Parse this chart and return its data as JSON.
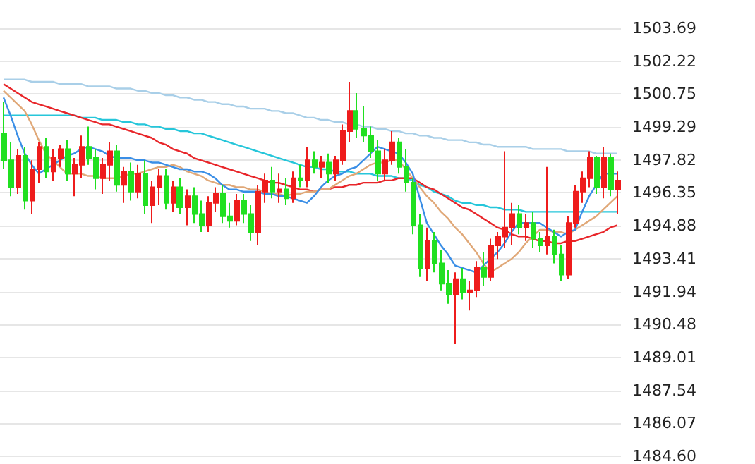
{
  "chart_data": {
    "type": "candlestick",
    "categories": [
      null,
      null,
      null,
      null,
      null,
      null,
      null,
      null,
      null,
      null,
      null,
      null,
      null,
      null,
      null,
      null,
      null,
      null,
      null,
      null,
      null,
      null,
      null,
      null,
      null,
      null,
      null,
      null,
      null,
      null,
      null,
      null,
      null,
      null,
      null,
      null,
      null,
      null,
      null,
      null,
      null,
      null,
      null,
      null,
      null,
      null,
      null,
      null,
      null,
      null,
      null,
      null,
      null,
      null,
      null,
      null,
      null,
      null,
      null,
      null,
      null,
      null,
      null,
      null,
      null,
      null,
      null,
      null,
      null,
      null,
      null,
      null,
      null,
      null,
      null,
      null,
      null,
      null,
      null,
      null,
      null,
      null,
      null,
      null,
      null,
      null,
      null,
      null
    ],
    "ohlc": [
      [
        1499.0,
        1500.4,
        1497.4,
        1497.8
      ],
      [
        1497.8,
        1498.6,
        1496.2,
        1496.6
      ],
      [
        1496.6,
        1498.3,
        1496.3,
        1498.0
      ],
      [
        1498.0,
        1498.4,
        1495.6,
        1496.0
      ],
      [
        1496.0,
        1497.8,
        1495.4,
        1497.4
      ],
      [
        1497.4,
        1498.6,
        1496.8,
        1498.4
      ],
      [
        1498.4,
        1498.8,
        1497.0,
        1497.3
      ],
      [
        1497.3,
        1498.3,
        1496.9,
        1497.9
      ],
      [
        1497.9,
        1498.5,
        1497.5,
        1498.3
      ],
      [
        1498.3,
        1498.7,
        1496.9,
        1497.2
      ],
      [
        1497.2,
        1497.9,
        1496.2,
        1497.6
      ],
      [
        1497.6,
        1498.9,
        1497.0,
        1498.4
      ],
      [
        1498.4,
        1499.3,
        1497.6,
        1497.9
      ],
      [
        1497.9,
        1498.3,
        1496.5,
        1497.0
      ],
      [
        1497.0,
        1497.9,
        1496.3,
        1497.6
      ],
      [
        1497.6,
        1498.6,
        1496.9,
        1498.2
      ],
      [
        1498.2,
        1498.5,
        1496.4,
        1496.7
      ],
      [
        1496.7,
        1497.5,
        1495.9,
        1497.3
      ],
      [
        1497.3,
        1497.7,
        1496.0,
        1496.4
      ],
      [
        1496.4,
        1497.6,
        1496.1,
        1497.2
      ],
      [
        1497.2,
        1497.8,
        1495.4,
        1495.8
      ],
      [
        1495.8,
        1496.9,
        1495.0,
        1496.6
      ],
      [
        1496.6,
        1497.4,
        1495.8,
        1497.1
      ],
      [
        1497.1,
        1497.4,
        1495.6,
        1495.9
      ],
      [
        1495.9,
        1496.9,
        1495.5,
        1496.6
      ],
      [
        1496.6,
        1497.0,
        1495.4,
        1495.7
      ],
      [
        1495.7,
        1496.5,
        1494.9,
        1496.2
      ],
      [
        1496.2,
        1496.6,
        1495.0,
        1495.4
      ],
      [
        1495.4,
        1496.0,
        1494.6,
        1494.9
      ],
      [
        1494.9,
        1496.2,
        1494.6,
        1495.9
      ],
      [
        1495.9,
        1496.6,
        1495.5,
        1496.3
      ],
      [
        1496.3,
        1496.7,
        1495.0,
        1495.3
      ],
      [
        1495.3,
        1495.9,
        1494.8,
        1495.1
      ],
      [
        1495.1,
        1496.3,
        1494.9,
        1496.0
      ],
      [
        1496.0,
        1496.3,
        1495.0,
        1495.4
      ],
      [
        1495.4,
        1495.8,
        1494.2,
        1494.6
      ],
      [
        1494.6,
        1496.7,
        1494.0,
        1496.4
      ],
      [
        1496.4,
        1497.2,
        1495.9,
        1496.9
      ],
      [
        1496.9,
        1497.5,
        1496.1,
        1496.4
      ],
      [
        1496.4,
        1497.2,
        1495.9,
        1496.5
      ],
      [
        1496.5,
        1497.0,
        1495.8,
        1496.1
      ],
      [
        1496.1,
        1497.3,
        1495.9,
        1497.0
      ],
      [
        1497.0,
        1497.6,
        1496.6,
        1496.9
      ],
      [
        1496.9,
        1498.4,
        1496.6,
        1497.8
      ],
      [
        1497.8,
        1498.2,
        1497.2,
        1497.5
      ],
      [
        1497.5,
        1498.0,
        1497.0,
        1497.7
      ],
      [
        1497.7,
        1498.1,
        1496.8,
        1497.2
      ],
      [
        1497.2,
        1498.0,
        1496.9,
        1497.8
      ],
      [
        1497.8,
        1499.4,
        1497.6,
        1499.1
      ],
      [
        1499.1,
        1501.3,
        1498.6,
        1500.0
      ],
      [
        1500.0,
        1500.8,
        1498.8,
        1499.2
      ],
      [
        1499.2,
        1500.2,
        1498.6,
        1498.9
      ],
      [
        1498.9,
        1499.3,
        1497.9,
        1498.2
      ],
      [
        1498.2,
        1498.7,
        1496.9,
        1497.2
      ],
      [
        1497.2,
        1498.3,
        1496.9,
        1497.8
      ],
      [
        1497.8,
        1499.1,
        1497.6,
        1498.6
      ],
      [
        1498.6,
        1498.8,
        1497.2,
        1497.5
      ],
      [
        1497.5,
        1498.3,
        1496.4,
        1496.8
      ],
      [
        1496.8,
        1497.0,
        1494.5,
        1494.9
      ],
      [
        1494.9,
        1495.4,
        1492.6,
        1493.0
      ],
      [
        1493.0,
        1494.8,
        1492.4,
        1494.2
      ],
      [
        1494.2,
        1494.6,
        1492.8,
        1493.2
      ],
      [
        1493.2,
        1493.8,
        1492.0,
        1492.3
      ],
      [
        1492.3,
        1492.9,
        1491.4,
        1491.8
      ],
      [
        1491.8,
        1492.8,
        1489.6,
        1492.5
      ],
      [
        1492.5,
        1493.0,
        1491.6,
        1491.9
      ],
      [
        1491.9,
        1492.4,
        1491.1,
        1492.0
      ],
      [
        1492.0,
        1493.3,
        1491.7,
        1493.0
      ],
      [
        1493.0,
        1493.7,
        1492.2,
        1492.6
      ],
      [
        1492.6,
        1494.3,
        1492.4,
        1494.0
      ],
      [
        1494.0,
        1494.6,
        1493.4,
        1494.4
      ],
      [
        1494.4,
        1498.2,
        1493.9,
        1494.8
      ],
      [
        1494.8,
        1495.9,
        1494.0,
        1495.4
      ],
      [
        1495.4,
        1495.8,
        1494.5,
        1494.8
      ],
      [
        1494.8,
        1495.4,
        1494.2,
        1495.0
      ],
      [
        1495.0,
        1495.5,
        1493.9,
        1494.3
      ],
      [
        1494.3,
        1494.6,
        1493.7,
        1494.0
      ],
      [
        1494.0,
        1497.5,
        1493.6,
        1494.4
      ],
      [
        1494.4,
        1494.7,
        1493.2,
        1493.6
      ],
      [
        1493.6,
        1494.0,
        1492.4,
        1492.7
      ],
      [
        1492.7,
        1495.3,
        1492.5,
        1495.0
      ],
      [
        1495.0,
        1496.7,
        1494.8,
        1496.4
      ],
      [
        1496.4,
        1497.3,
        1495.9,
        1497.0
      ],
      [
        1497.0,
        1498.2,
        1496.6,
        1497.9
      ],
      [
        1497.9,
        1498.0,
        1496.3,
        1496.6
      ],
      [
        1496.6,
        1498.4,
        1496.1,
        1497.9
      ],
      [
        1497.9,
        1498.1,
        1496.2,
        1496.5
      ],
      [
        1496.5,
        1497.3,
        1495.4,
        1496.9
      ]
    ],
    "colors": [
      "#20e020",
      "#20e020",
      "#ee1c1c",
      "#20e020",
      "#ee1c1c",
      "#ee1c1c",
      "#20e020",
      "#ee1c1c",
      "#ee1c1c",
      "#20e020",
      "#ee1c1c",
      "#ee1c1c",
      "#20e020",
      "#20e020",
      "#ee1c1c",
      "#ee1c1c",
      "#20e020",
      "#ee1c1c",
      "#20e020",
      "#ee1c1c",
      "#20e020",
      "#ee1c1c",
      "#ee1c1c",
      "#20e020",
      "#ee1c1c",
      "#20e020",
      "#ee1c1c",
      "#20e020",
      "#20e020",
      "#ee1c1c",
      "#ee1c1c",
      "#20e020",
      "#20e020",
      "#ee1c1c",
      "#20e020",
      "#20e020",
      "#ee1c1c",
      "#ee1c1c",
      "#20e020",
      "#ee1c1c",
      "#20e020",
      "#ee1c1c",
      "#20e020",
      "#ee1c1c",
      "#20e020",
      "#ee1c1c",
      "#20e020",
      "#ee1c1c",
      "#ee1c1c",
      "#ee1c1c",
      "#20e020",
      "#20e020",
      "#20e020",
      "#20e020",
      "#ee1c1c",
      "#ee1c1c",
      "#20e020",
      "#20e020",
      "#20e020",
      "#20e020",
      "#ee1c1c",
      "#20e020",
      "#20e020",
      "#20e020",
      "#ee1c1c",
      "#20e020",
      "#ee1c1c",
      "#ee1c1c",
      "#20e020",
      "#ee1c1c",
      "#ee1c1c",
      "#ee1c1c",
      "#ee1c1c",
      "#20e020",
      "#ee1c1c",
      "#20e020",
      "#20e020",
      "#ee1c1c",
      "#20e020",
      "#20e020",
      "#ee1c1c",
      "#ee1c1c",
      "#ee1c1c",
      "#ee1c1c",
      "#20e020",
      "#ee1c1c",
      "#20e020",
      "#ee1c1c"
    ],
    "series": [
      {
        "type": "line",
        "color": "#a9cfe8",
        "values": [
          1501.4,
          1501.4,
          1501.4,
          1501.4,
          1501.3,
          1501.3,
          1501.3,
          1501.3,
          1501.2,
          1501.2,
          1501.2,
          1501.2,
          1501.1,
          1501.1,
          1501.1,
          1501.1,
          1501.0,
          1501.0,
          1501.0,
          1500.9,
          1500.9,
          1500.8,
          1500.8,
          1500.7,
          1500.7,
          1500.6,
          1500.6,
          1500.5,
          1500.5,
          1500.4,
          1500.4,
          1500.3,
          1500.3,
          1500.2,
          1500.2,
          1500.1,
          1500.1,
          1500.1,
          1500.0,
          1500.0,
          1499.9,
          1499.9,
          1499.8,
          1499.7,
          1499.7,
          1499.6,
          1499.6,
          1499.5,
          1499.5,
          1499.4,
          1499.4,
          1499.3,
          1499.3,
          1499.2,
          1499.2,
          1499.1,
          1499.1,
          1499.0,
          1499.0,
          1498.9,
          1498.9,
          1498.8,
          1498.8,
          1498.7,
          1498.7,
          1498.7,
          1498.6,
          1498.6,
          1498.5,
          1498.5,
          1498.4,
          1498.4,
          1498.4,
          1498.4,
          1498.4,
          1498.3,
          1498.3,
          1498.3,
          1498.3,
          1498.3,
          1498.2,
          1498.2,
          1498.2,
          1498.2,
          1498.1,
          1498.1,
          1498.1,
          1498.1
        ]
      },
      {
        "type": "line",
        "color": "#26c6da",
        "values": [
          1499.8,
          1499.8,
          1499.8,
          1499.8,
          1499.8,
          1499.8,
          1499.8,
          1499.8,
          1499.8,
          1499.8,
          1499.8,
          1499.7,
          1499.7,
          1499.7,
          1499.6,
          1499.6,
          1499.6,
          1499.5,
          1499.5,
          1499.4,
          1499.4,
          1499.3,
          1499.3,
          1499.2,
          1499.2,
          1499.1,
          1499.1,
          1499.0,
          1499.0,
          1498.9,
          1498.8,
          1498.7,
          1498.6,
          1498.5,
          1498.4,
          1498.3,
          1498.2,
          1498.1,
          1498.0,
          1497.9,
          1497.8,
          1497.7,
          1497.6,
          1497.5,
          1497.5,
          1497.4,
          1497.4,
          1497.3,
          1497.3,
          1497.3,
          1497.2,
          1497.2,
          1497.2,
          1497.1,
          1497.1,
          1497.1,
          1497.0,
          1497.0,
          1496.9,
          1496.7,
          1496.6,
          1496.4,
          1496.3,
          1496.2,
          1496.0,
          1495.9,
          1495.9,
          1495.8,
          1495.8,
          1495.7,
          1495.7,
          1495.6,
          1495.6,
          1495.6,
          1495.5,
          1495.5,
          1495.5,
          1495.5,
          1495.5,
          1495.5,
          1495.5,
          1495.5,
          1495.5,
          1495.5,
          1495.5,
          1495.5,
          1495.5,
          1495.5
        ]
      },
      {
        "type": "line",
        "color": "#e8262a",
        "values": [
          1501.2,
          1501.0,
          1500.8,
          1500.6,
          1500.4,
          1500.3,
          1500.2,
          1500.1,
          1500.0,
          1499.9,
          1499.8,
          1499.7,
          1499.6,
          1499.5,
          1499.4,
          1499.4,
          1499.3,
          1499.2,
          1499.1,
          1499.0,
          1498.9,
          1498.8,
          1498.6,
          1498.5,
          1498.3,
          1498.2,
          1498.1,
          1497.9,
          1497.8,
          1497.7,
          1497.6,
          1497.5,
          1497.4,
          1497.3,
          1497.2,
          1497.1,
          1497.0,
          1496.9,
          1496.8,
          1496.8,
          1496.7,
          1496.6,
          1496.5,
          1496.5,
          1496.4,
          1496.5,
          1496.5,
          1496.6,
          1496.6,
          1496.7,
          1496.7,
          1496.8,
          1496.8,
          1496.8,
          1496.9,
          1496.9,
          1497.0,
          1497.0,
          1497.0,
          1496.8,
          1496.6,
          1496.5,
          1496.3,
          1496.1,
          1495.9,
          1495.7,
          1495.6,
          1495.4,
          1495.2,
          1495.0,
          1494.8,
          1494.7,
          1494.5,
          1494.4,
          1494.4,
          1494.3,
          1494.2,
          1494.2,
          1494.1,
          1494.1,
          1494.2,
          1494.2,
          1494.3,
          1494.4,
          1494.5,
          1494.6,
          1494.8,
          1494.9
        ]
      },
      {
        "type": "line",
        "color": "#e0a878",
        "values": [
          1500.9,
          1500.6,
          1500.3,
          1500.0,
          1499.4,
          1498.7,
          1498.1,
          1497.8,
          1497.5,
          1497.2,
          1497.2,
          1497.2,
          1497.1,
          1497.1,
          1497.0,
          1497.0,
          1497.0,
          1497.1,
          1497.2,
          1497.2,
          1497.3,
          1497.4,
          1497.5,
          1497.5,
          1497.6,
          1497.5,
          1497.3,
          1497.2,
          1497.1,
          1496.9,
          1496.8,
          1496.7,
          1496.7,
          1496.6,
          1496.6,
          1496.5,
          1496.5,
          1496.4,
          1496.3,
          1496.3,
          1496.2,
          1496.3,
          1496.3,
          1496.4,
          1496.4,
          1496.5,
          1496.5,
          1496.7,
          1496.9,
          1497.1,
          1497.2,
          1497.4,
          1497.6,
          1497.7,
          1497.7,
          1497.8,
          1497.8,
          1497.4,
          1497.0,
          1496.6,
          1496.2,
          1495.9,
          1495.5,
          1495.2,
          1494.8,
          1494.5,
          1494.1,
          1493.7,
          1493.2,
          1492.8,
          1493.0,
          1493.2,
          1493.4,
          1493.7,
          1494.1,
          1494.4,
          1494.7,
          1494.7,
          1494.6,
          1494.6,
          1494.5,
          1494.7,
          1494.9,
          1495.1,
          1495.3,
          1495.6,
          1495.9,
          1496.2
        ]
      },
      {
        "type": "line",
        "color": "#3a8ee6",
        "values": [
          1500.6,
          1499.8,
          1498.9,
          1498.1,
          1497.6,
          1497.2,
          1497.4,
          1497.6,
          1497.8,
          1498.0,
          1498.1,
          1498.3,
          1498.4,
          1498.3,
          1498.2,
          1498.0,
          1497.9,
          1497.9,
          1497.9,
          1497.8,
          1497.8,
          1497.7,
          1497.7,
          1497.6,
          1497.5,
          1497.4,
          1497.4,
          1497.3,
          1497.3,
          1497.2,
          1497.0,
          1496.7,
          1496.5,
          1496.5,
          1496.4,
          1496.4,
          1496.4,
          1496.3,
          1496.3,
          1496.2,
          1496.2,
          1496.1,
          1496.0,
          1495.9,
          1496.2,
          1496.6,
          1496.9,
          1497.1,
          1497.2,
          1497.4,
          1497.5,
          1497.8,
          1498.1,
          1498.4,
          1498.3,
          1498.2,
          1498.1,
          1497.7,
          1497.2,
          1496.1,
          1495.0,
          1494.5,
          1494.0,
          1493.6,
          1493.1,
          1493.0,
          1492.9,
          1492.8,
          1493.1,
          1493.4,
          1493.7,
          1494.1,
          1494.6,
          1495.0,
          1495.0,
          1495.0,
          1495.0,
          1494.8,
          1494.6,
          1494.4,
          1494.6,
          1494.7,
          1495.5,
          1496.2,
          1496.7,
          1497.2,
          1497.2,
          1497.2
        ]
      }
    ],
    "ylim": [
      1484.6,
      1503.69
    ],
    "yticks": [
      {
        "value": 1484.6,
        "label": "1484.60"
      },
      1486.07,
      1487.54,
      1489.01,
      1490.48,
      1491.94,
      1493.41,
      1494.88,
      1496.35,
      1497.82,
      1499.29,
      1500.75,
      1502.22,
      1503.69
    ],
    "grid": "y"
  }
}
